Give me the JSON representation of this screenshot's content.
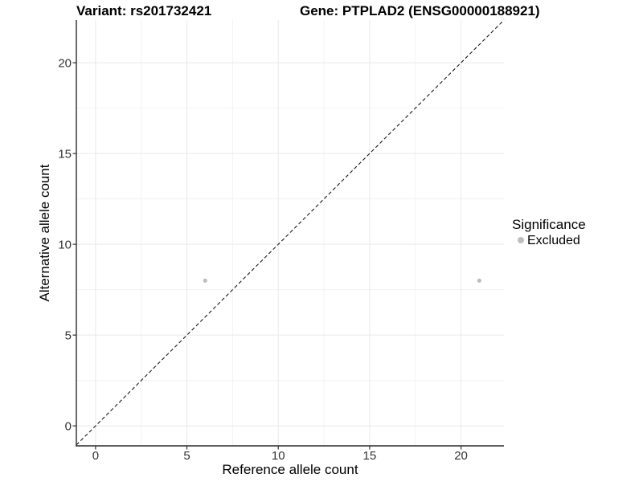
{
  "chart_data": {
    "type": "scatter",
    "title_left": "Variant: rs201732421",
    "title_right": "Gene: PTPLAD2 (ENSG00000188921)",
    "variant": "rs201732421",
    "gene": "PTPLAD2",
    "gene_id": "ENSG00000188921",
    "xlabel": "Reference allele count",
    "ylabel": "Alternative allele count",
    "xlim": [
      -1.05,
      22.35
    ],
    "ylim": [
      -1.1,
      22.35
    ],
    "x_ticks": [
      0,
      5,
      10,
      15,
      20
    ],
    "y_ticks": [
      0,
      5,
      10,
      15,
      20
    ],
    "minor_step": 2.5,
    "grid": true,
    "identity_line": {
      "style": "dashed",
      "slope": 1,
      "intercept": 0
    },
    "series": [
      {
        "name": "Excluded",
        "color": "#bebebe",
        "points": [
          {
            "x": 6,
            "y": 8
          },
          {
            "x": 21,
            "y": 8
          }
        ]
      }
    ],
    "legend": {
      "title": "Significance",
      "position": "right",
      "entries": [
        {
          "label": "Excluded",
          "color": "#bebebe"
        }
      ]
    }
  },
  "colors": {
    "background": "#ffffff",
    "grid_major": "#e9e9e9",
    "grid_minor": "#f3f3f3",
    "axis_line": "#2a2a2a",
    "tick_mark": "#333333",
    "tick_label": "#333333",
    "identity_line": "#1a1a1a",
    "point": "#bebebe",
    "title_text": "#000000"
  }
}
